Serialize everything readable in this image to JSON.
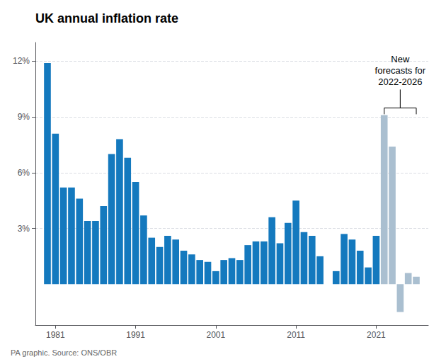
{
  "chart_data": {
    "type": "bar",
    "title": "UK annual inflation rate",
    "source": "PA graphic. Source: ONS/OBR",
    "annotation": "New\nforecasts for\n2022-2026",
    "series": [
      {
        "color": "#1479be",
        "x": [
          1980,
          1981,
          1982,
          1983,
          1984,
          1985,
          1986,
          1987,
          1988,
          1989,
          1990,
          1991,
          1992,
          1993,
          1994,
          1995,
          1996,
          1997,
          1998,
          1999,
          2000,
          2001,
          2002,
          2003,
          2004,
          2005,
          2006,
          2007,
          2008,
          2009,
          2010,
          2011,
          2012,
          2013,
          2014,
          2015,
          2016,
          2017,
          2018,
          2019,
          2020,
          2021
        ],
        "values": [
          11.9,
          8.1,
          5.2,
          5.2,
          4.6,
          3.4,
          3.4,
          4.2,
          7.0,
          7.8,
          6.8,
          5.5,
          3.7,
          2.5,
          2.0,
          2.6,
          2.4,
          1.8,
          1.6,
          1.3,
          1.2,
          0.7,
          1.3,
          1.4,
          1.3,
          2.1,
          2.3,
          2.3,
          3.6,
          2.2,
          3.3,
          4.5,
          2.8,
          2.6,
          1.5,
          0.0,
          0.7,
          2.7,
          2.4,
          1.8,
          0.9,
          2.6
        ]
      },
      {
        "color": "#aabfd0",
        "x": [
          2022,
          2023,
          2024,
          2025,
          2026
        ],
        "values": [
          9.1,
          7.4,
          -1.5,
          0.6,
          0.4
        ]
      }
    ],
    "xlim": [
      1978.5,
      2027.5
    ],
    "xticks": [
      1981,
      1991,
      2001,
      2011,
      2021
    ],
    "ylim": [
      -2.2,
      13.0
    ],
    "yticks": [
      {
        "value": 3,
        "label": "3%"
      },
      {
        "value": 6,
        "label": "6%"
      },
      {
        "value": 9,
        "label": "9%"
      },
      {
        "value": 12,
        "label": "12%"
      }
    ],
    "grid": true
  }
}
